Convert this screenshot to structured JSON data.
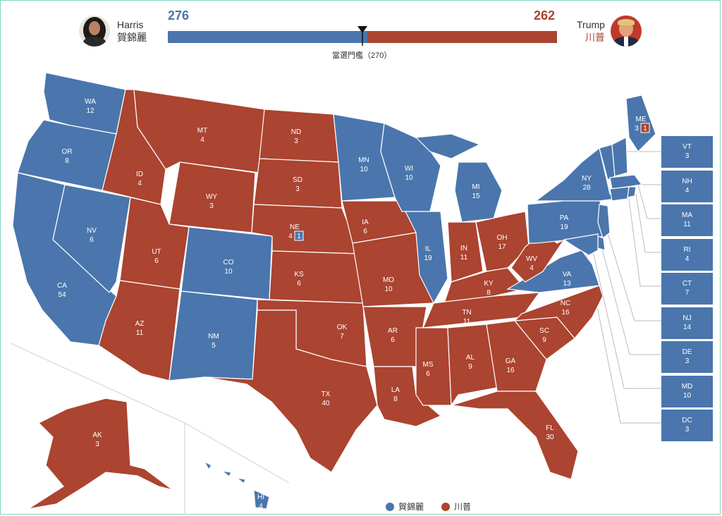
{
  "header": {
    "dem": {
      "name_en": "Harris",
      "name_zh": "賀錦麗",
      "votes": "276",
      "color": "#4a76ad"
    },
    "rep": {
      "name_en": "Trump",
      "name_zh": "川普",
      "votes": "262",
      "color": "#ab4430"
    },
    "threshold_label": "當選門檻（270）"
  },
  "legend": {
    "dem": "賀錦麗",
    "rep": "川普"
  },
  "states": {
    "WA": {
      "abbr": "WA",
      "ev": "12",
      "winner": "dem"
    },
    "OR": {
      "abbr": "OR",
      "ev": "8",
      "winner": "dem"
    },
    "CA": {
      "abbr": "CA",
      "ev": "54",
      "winner": "dem"
    },
    "NV": {
      "abbr": "NV",
      "ev": "6",
      "winner": "dem"
    },
    "ID": {
      "abbr": "ID",
      "ev": "4",
      "winner": "rep"
    },
    "MT": {
      "abbr": "MT",
      "ev": "4",
      "winner": "rep"
    },
    "WY": {
      "abbr": "WY",
      "ev": "3",
      "winner": "rep"
    },
    "UT": {
      "abbr": "UT",
      "ev": "6",
      "winner": "rep"
    },
    "AZ": {
      "abbr": "AZ",
      "ev": "11",
      "winner": "rep"
    },
    "CO": {
      "abbr": "CO",
      "ev": "10",
      "winner": "dem"
    },
    "NM": {
      "abbr": "NM",
      "ev": "5",
      "winner": "dem"
    },
    "ND": {
      "abbr": "ND",
      "ev": "3",
      "winner": "rep"
    },
    "SD": {
      "abbr": "SD",
      "ev": "3",
      "winner": "rep"
    },
    "NE": {
      "abbr": "NE",
      "ev": "4",
      "split": "1",
      "winner": "rep"
    },
    "KS": {
      "abbr": "KS",
      "ev": "6",
      "winner": "rep"
    },
    "OK": {
      "abbr": "OK",
      "ev": "7",
      "winner": "rep"
    },
    "TX": {
      "abbr": "TX",
      "ev": "40",
      "winner": "rep"
    },
    "MN": {
      "abbr": "MN",
      "ev": "10",
      "winner": "dem"
    },
    "IA": {
      "abbr": "IA",
      "ev": "6",
      "winner": "rep"
    },
    "MO": {
      "abbr": "MO",
      "ev": "10",
      "winner": "rep"
    },
    "AR": {
      "abbr": "AR",
      "ev": "6",
      "winner": "rep"
    },
    "LA": {
      "abbr": "LA",
      "ev": "8",
      "winner": "rep"
    },
    "WI": {
      "abbr": "WI",
      "ev": "10",
      "winner": "dem"
    },
    "IL": {
      "abbr": "IL",
      "ev": "19",
      "winner": "dem"
    },
    "MI": {
      "abbr": "MI",
      "ev": "15",
      "winner": "dem"
    },
    "IN": {
      "abbr": "IN",
      "ev": "11",
      "winner": "rep"
    },
    "OH": {
      "abbr": "OH",
      "ev": "17",
      "winner": "rep"
    },
    "KY": {
      "abbr": "KY",
      "ev": "8",
      "winner": "rep"
    },
    "TN": {
      "abbr": "TN",
      "ev": "11",
      "winner": "rep"
    },
    "MS": {
      "abbr": "MS",
      "ev": "6",
      "winner": "rep"
    },
    "AL": {
      "abbr": "AL",
      "ev": "9",
      "winner": "rep"
    },
    "GA": {
      "abbr": "GA",
      "ev": "16",
      "winner": "rep"
    },
    "FL": {
      "abbr": "FL",
      "ev": "30",
      "winner": "rep"
    },
    "SC": {
      "abbr": "SC",
      "ev": "9",
      "winner": "rep"
    },
    "NC": {
      "abbr": "NC",
      "ev": "16",
      "winner": "rep"
    },
    "VA": {
      "abbr": "VA",
      "ev": "13",
      "winner": "dem"
    },
    "WV": {
      "abbr": "WV",
      "ev": "4",
      "winner": "rep"
    },
    "PA": {
      "abbr": "PA",
      "ev": "19",
      "winner": "dem"
    },
    "NY": {
      "abbr": "NY",
      "ev": "28",
      "winner": "dem"
    },
    "ME": {
      "abbr": "ME",
      "ev": "3",
      "split": "1",
      "winner": "dem"
    },
    "AK": {
      "abbr": "AK",
      "ev": "3",
      "winner": "rep"
    },
    "HI": {
      "abbr": "HI",
      "ev": "4",
      "winner": "dem"
    }
  },
  "small_states": [
    {
      "abbr": "VT",
      "ev": "3"
    },
    {
      "abbr": "NH",
      "ev": "4"
    },
    {
      "abbr": "MA",
      "ev": "11"
    },
    {
      "abbr": "RI",
      "ev": "4"
    },
    {
      "abbr": "CT",
      "ev": "7"
    },
    {
      "abbr": "NJ",
      "ev": "14"
    },
    {
      "abbr": "DE",
      "ev": "3"
    },
    {
      "abbr": "MD",
      "ev": "10"
    },
    {
      "abbr": "DC",
      "ev": "3"
    }
  ]
}
